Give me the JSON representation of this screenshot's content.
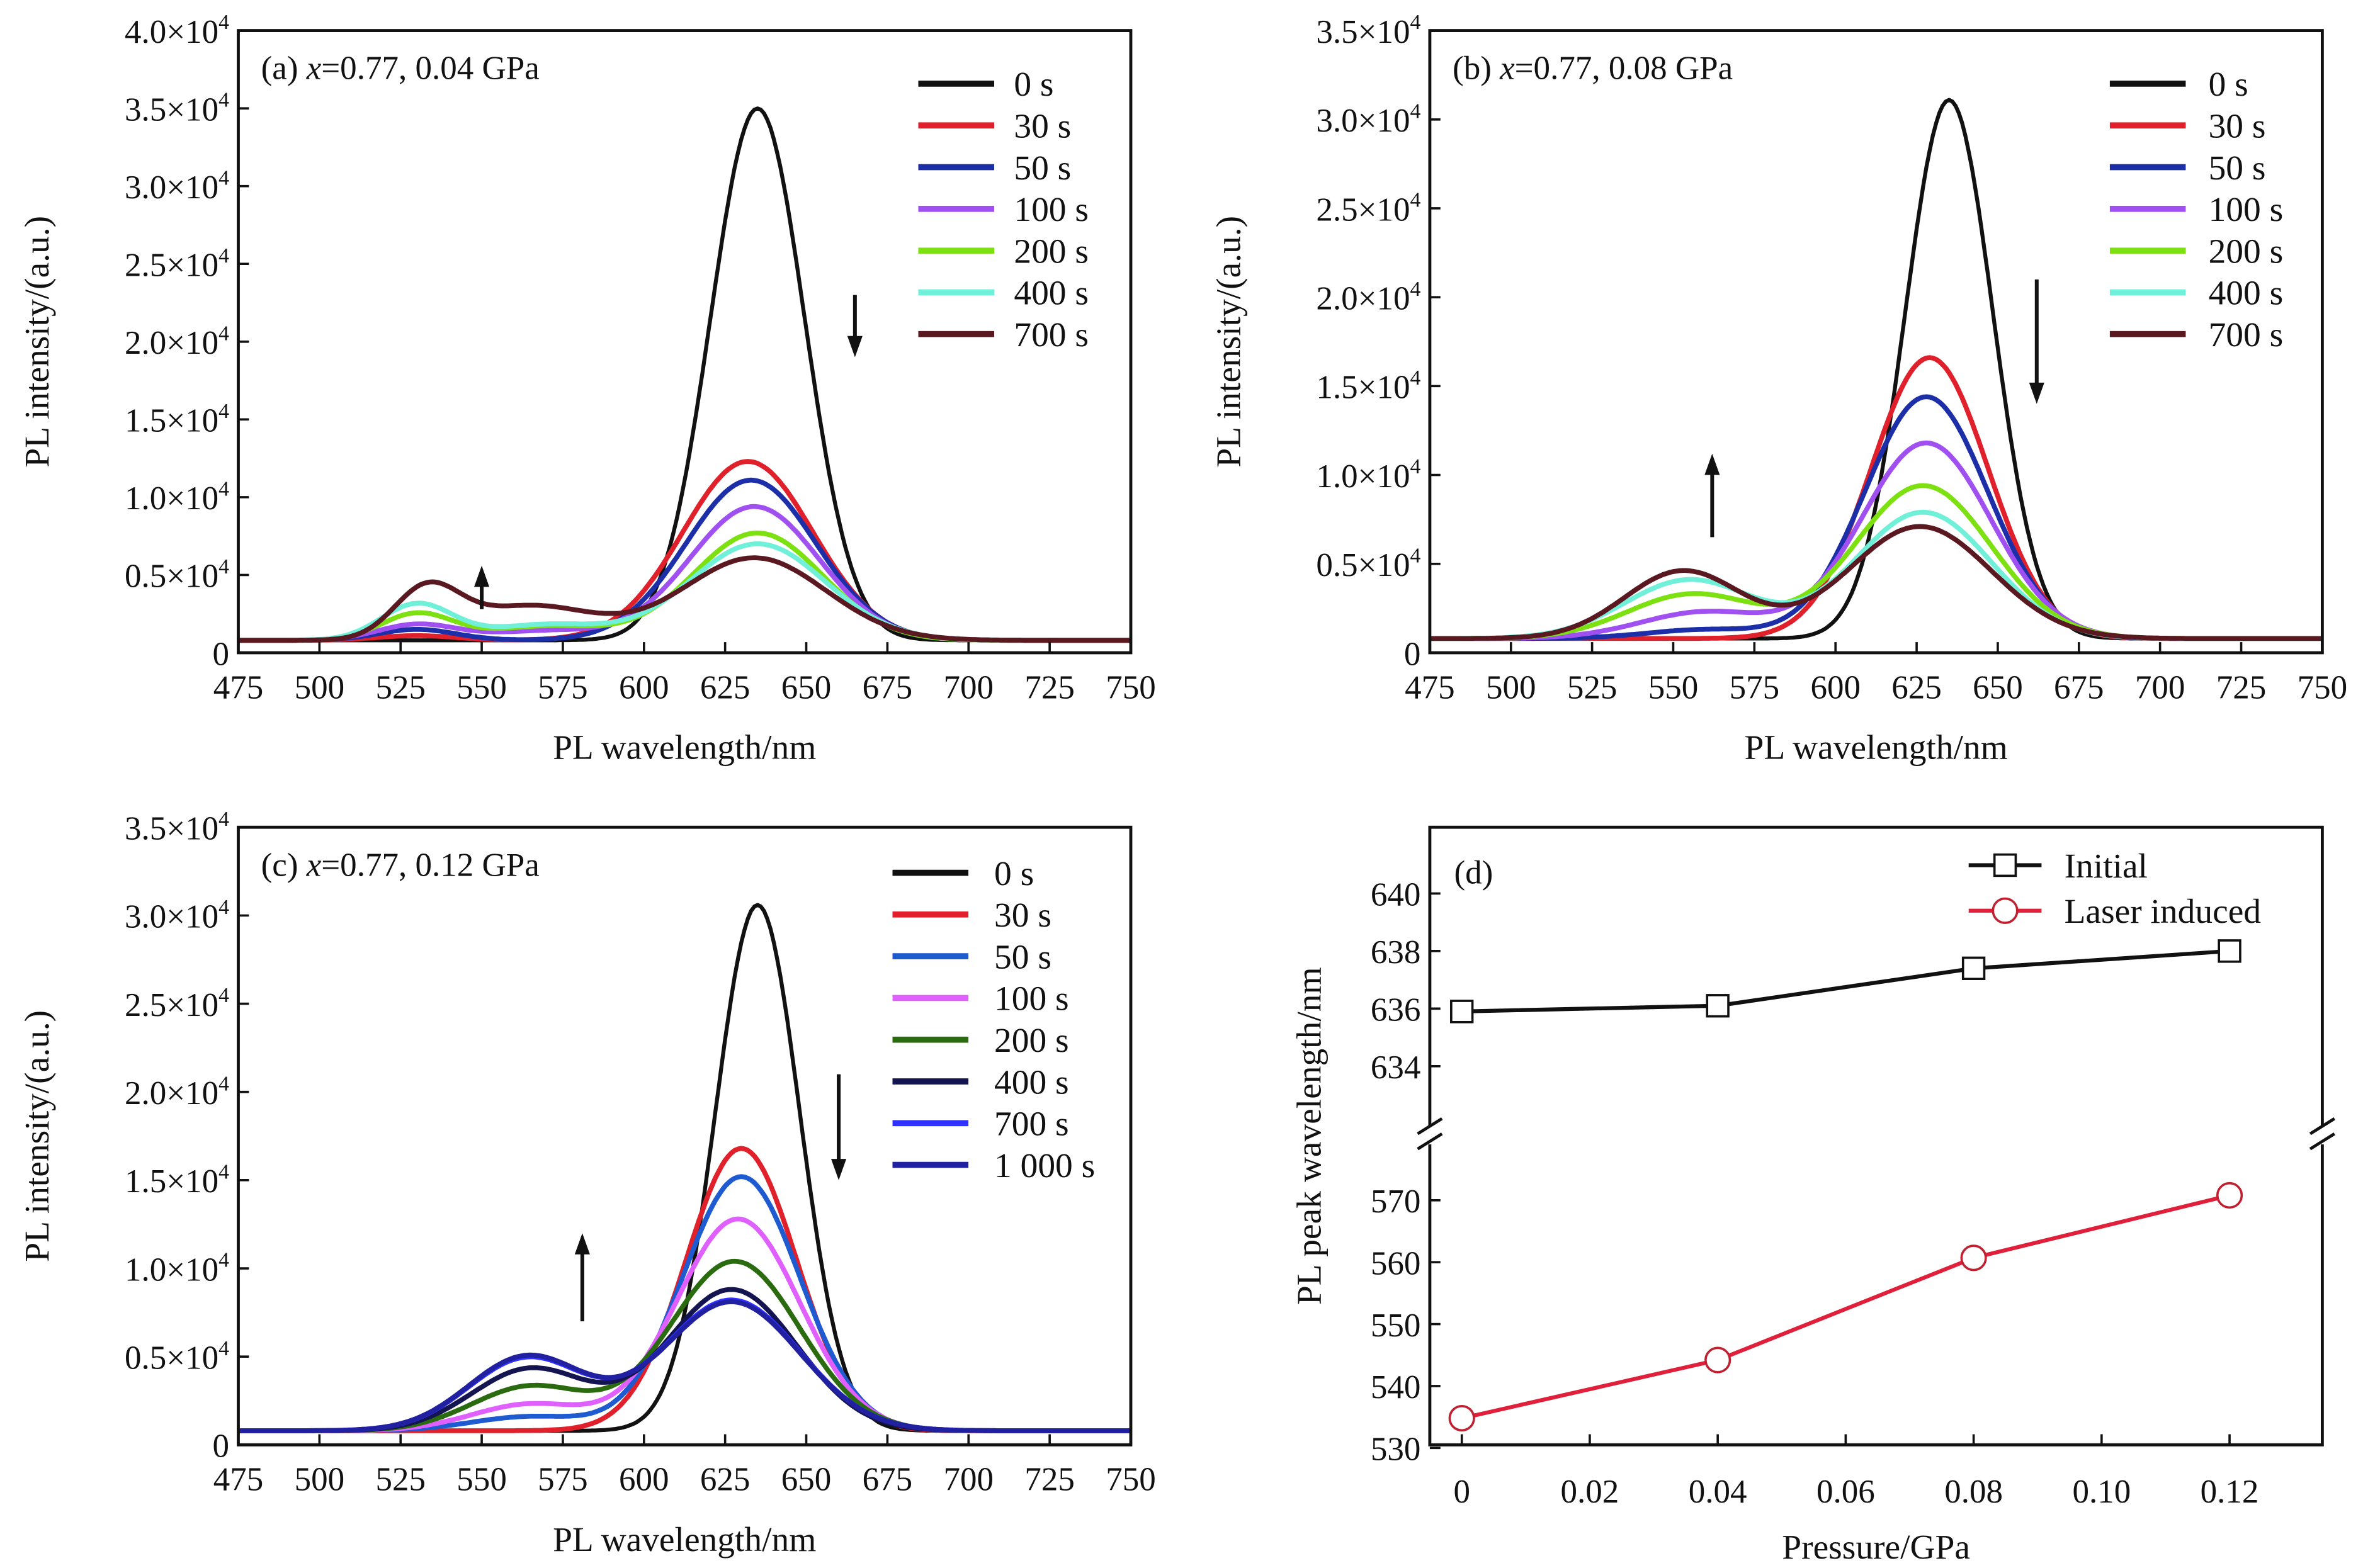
{
  "chart_data": [
    {
      "type": "line",
      "panel": "a",
      "title_prefix": "(a) ",
      "title_var": "x",
      "title_rest": "=0.77, 0.04 GPa",
      "xlabel": "PL wavelength/nm",
      "ylabel": "PL intensity/(a.u.)",
      "xlim": [
        475,
        750
      ],
      "ylim": [
        0,
        40000
      ],
      "xticks": [
        "475",
        "500",
        "525",
        "550",
        "575",
        "600",
        "625",
        "650",
        "675",
        "700",
        "725",
        "750"
      ],
      "yticks": [
        {
          "v": 0,
          "t": "0"
        },
        {
          "v": 5000,
          "t": "0.5×10^4"
        },
        {
          "v": 10000,
          "t": "1.0×10^4"
        },
        {
          "v": 15000,
          "t": "1.5×10^4"
        },
        {
          "v": 20000,
          "t": "2.0×10^4"
        },
        {
          "v": 25000,
          "t": "2.5×10^4"
        },
        {
          "v": 30000,
          "t": "3.0×10^4"
        },
        {
          "v": 35000,
          "t": "3.5×10^4"
        },
        {
          "v": 40000,
          "t": "4.0×10^4"
        }
      ],
      "legend_position": "top-right",
      "arrows": [
        {
          "direction": "up",
          "x": 550,
          "y_from": 2800,
          "y_to": 5600
        },
        {
          "direction": "down",
          "x": 665,
          "y_from": 23000,
          "y_to": 19000
        }
      ],
      "baseline": 800,
      "series": [
        {
          "name": "0 s",
          "color": "#111111",
          "peaks": [
            {
              "center": 635,
              "amplitude": 34200,
              "sigma": 14.5
            }
          ]
        },
        {
          "name": "30 s",
          "color": "#e0202a",
          "peaks": [
            {
              "center": 632,
              "amplitude": 11500,
              "sigma": 20
            },
            {
              "center": 530,
              "amplitude": 300,
              "sigma": 12
            }
          ]
        },
        {
          "name": "50 s",
          "color": "#1c2fa8",
          "peaks": [
            {
              "center": 633,
              "amplitude": 10300,
              "sigma": 20
            },
            {
              "center": 530,
              "amplitude": 700,
              "sigma": 12
            }
          ]
        },
        {
          "name": "100 s",
          "color": "#a050f0",
          "peaks": [
            {
              "center": 634,
              "amplitude": 8600,
              "sigma": 20
            },
            {
              "center": 530,
              "amplitude": 1000,
              "sigma": 12
            },
            {
              "center": 570,
              "amplitude": 600,
              "sigma": 18
            }
          ]
        },
        {
          "name": "200 s",
          "color": "#7de010",
          "peaks": [
            {
              "center": 635,
              "amplitude": 6900,
              "sigma": 20
            },
            {
              "center": 530,
              "amplitude": 1700,
              "sigma": 11
            },
            {
              "center": 570,
              "amplitude": 900,
              "sigma": 18
            }
          ]
        },
        {
          "name": "400 s",
          "color": "#70f0d8",
          "peaks": [
            {
              "center": 635,
              "amplitude": 6200,
              "sigma": 21
            },
            {
              "center": 530,
              "amplitude": 2300,
              "sigma": 11
            },
            {
              "center": 570,
              "amplitude": 1000,
              "sigma": 18
            }
          ]
        },
        {
          "name": "700 s",
          "color": "#5a1820",
          "peaks": [
            {
              "center": 634,
              "amplitude": 5300,
              "sigma": 22
            },
            {
              "center": 533,
              "amplitude": 3100,
              "sigma": 10
            },
            {
              "center": 565,
              "amplitude": 2200,
              "sigma": 20
            }
          ]
        }
      ]
    },
    {
      "type": "line",
      "panel": "b",
      "title_prefix": "(b) ",
      "title_var": "x",
      "title_rest": "=0.77, 0.08 GPa",
      "xlabel": "PL wavelength/nm",
      "ylabel": "PL intensity/(a.u.)",
      "xlim": [
        475,
        750
      ],
      "ylim": [
        0,
        35000
      ],
      "xticks": [
        "475",
        "500",
        "525",
        "550",
        "575",
        "600",
        "625",
        "650",
        "675",
        "700",
        "725",
        "750"
      ],
      "yticks": [
        {
          "v": 0,
          "t": "0"
        },
        {
          "v": 5000,
          "t": "0.5×10^4"
        },
        {
          "v": 10000,
          "t": "1.0×10^4"
        },
        {
          "v": 15000,
          "t": "1.5×10^4"
        },
        {
          "v": 20000,
          "t": "2.0×10^4"
        },
        {
          "v": 25000,
          "t": "2.5×10^4"
        },
        {
          "v": 30000,
          "t": "3.0×10^4"
        },
        {
          "v": 35000,
          "t": "3.5×10^4"
        }
      ],
      "legend_position": "top-right",
      "arrows": [
        {
          "direction": "up",
          "x": 562,
          "y_from": 6500,
          "y_to": 11200
        },
        {
          "direction": "down",
          "x": 662,
          "y_from": 21000,
          "y_to": 14000
        }
      ],
      "baseline": 800,
      "series": [
        {
          "name": "0 s",
          "color": "#111111",
          "peaks": [
            {
              "center": 635,
              "amplitude": 30300,
              "sigma": 13.5
            }
          ]
        },
        {
          "name": "30 s",
          "color": "#e0202a",
          "peaks": [
            {
              "center": 629,
              "amplitude": 15800,
              "sigma": 18
            }
          ]
        },
        {
          "name": "50 s",
          "color": "#1c2fa8",
          "peaks": [
            {
              "center": 628,
              "amplitude": 13600,
              "sigma": 19
            },
            {
              "center": 560,
              "amplitude": 500,
              "sigma": 18
            }
          ]
        },
        {
          "name": "100 s",
          "color": "#a050f0",
          "peaks": [
            {
              "center": 628,
              "amplitude": 11000,
              "sigma": 20
            },
            {
              "center": 560,
              "amplitude": 1500,
              "sigma": 20
            }
          ]
        },
        {
          "name": "200 s",
          "color": "#7de010",
          "peaks": [
            {
              "center": 627,
              "amplitude": 8600,
              "sigma": 21
            },
            {
              "center": 556,
              "amplitude": 2500,
              "sigma": 20
            }
          ]
        },
        {
          "name": "400 s",
          "color": "#70f0d8",
          "peaks": [
            {
              "center": 627,
              "amplitude": 7100,
              "sigma": 21
            },
            {
              "center": 555,
              "amplitude": 3300,
              "sigma": 20
            }
          ]
        },
        {
          "name": "700 s",
          "color": "#5a1820",
          "peaks": [
            {
              "center": 626,
              "amplitude": 6300,
              "sigma": 22
            },
            {
              "center": 553,
              "amplitude": 3800,
              "sigma": 18
            }
          ]
        }
      ]
    },
    {
      "type": "line",
      "panel": "c",
      "title_prefix": "(c) ",
      "title_var": "x",
      "title_rest": "=0.77, 0.12 GPa",
      "xlabel": "PL wavelength/nm",
      "ylabel": "PL intensity/(a.u.)",
      "xlim": [
        475,
        750
      ],
      "ylim": [
        0,
        35000
      ],
      "xticks": [
        "475",
        "500",
        "525",
        "550",
        "575",
        "600",
        "625",
        "650",
        "675",
        "700",
        "725",
        "750"
      ],
      "yticks": [
        {
          "v": 0,
          "t": "0"
        },
        {
          "v": 5000,
          "t": "0.5×10^4"
        },
        {
          "v": 10000,
          "t": "1.0×10^4"
        },
        {
          "v": 15000,
          "t": "1.5×10^4"
        },
        {
          "v": 20000,
          "t": "2.0×10^4"
        },
        {
          "v": 25000,
          "t": "2.5×10^4"
        },
        {
          "v": 30000,
          "t": "3.0×10^4"
        },
        {
          "v": 35000,
          "t": "3.5×10^4"
        }
      ],
      "legend_position": "top-right",
      "arrows": [
        {
          "direction": "up",
          "x": 581,
          "y_from": 7000,
          "y_to": 12000
        },
        {
          "direction": "down",
          "x": 660,
          "y_from": 21000,
          "y_to": 15000
        }
      ],
      "baseline": 800,
      "series": [
        {
          "name": "0 s",
          "color": "#111111",
          "peaks": [
            {
              "center": 635,
              "amplitude": 29800,
              "sigma": 13
            }
          ]
        },
        {
          "name": "30 s",
          "color": "#e0202a",
          "peaks": [
            {
              "center": 630,
              "amplitude": 16000,
              "sigma": 17
            }
          ]
        },
        {
          "name": "50 s",
          "color": "#1e5ad0",
          "peaks": [
            {
              "center": 630,
              "amplitude": 14400,
              "sigma": 18
            },
            {
              "center": 565,
              "amplitude": 800,
              "sigma": 18
            }
          ]
        },
        {
          "name": "100 s",
          "color": "#e060ff",
          "peaks": [
            {
              "center": 629,
              "amplitude": 12000,
              "sigma": 19
            },
            {
              "center": 565,
              "amplitude": 1500,
              "sigma": 18
            }
          ]
        },
        {
          "name": "200 s",
          "color": "#2a6b10",
          "peaks": [
            {
              "center": 628,
              "amplitude": 9600,
              "sigma": 20
            },
            {
              "center": 565,
              "amplitude": 2500,
              "sigma": 18
            }
          ]
        },
        {
          "name": "400 s",
          "color": "#141450",
          "peaks": [
            {
              "center": 627,
              "amplitude": 8000,
              "sigma": 20
            },
            {
              "center": 565,
              "amplitude": 3500,
              "sigma": 18
            }
          ]
        },
        {
          "name": "700 s",
          "color": "#3030ff",
          "peaks": [
            {
              "center": 627,
              "amplitude": 7400,
              "sigma": 21
            },
            {
              "center": 564,
              "amplitude": 4100,
              "sigma": 18
            }
          ]
        },
        {
          "name": "1 000 s",
          "color": "#2020a0",
          "peaks": [
            {
              "center": 627,
              "amplitude": 7300,
              "sigma": 21
            },
            {
              "center": 564,
              "amplitude": 4200,
              "sigma": 18
            }
          ]
        }
      ]
    },
    {
      "type": "line",
      "panel": "d",
      "title": "(d)",
      "xlabel": "Pressure/GPa",
      "ylabel": "PL peak wavelength/nm",
      "xlim": [
        -0.005,
        0.1345
      ],
      "ylim_top": [
        631.6,
        642.3
      ],
      "ylim_bottom": [
        530.5,
        580.5
      ],
      "axis_break": true,
      "xticks": [
        {
          "v": 0,
          "t": "0"
        },
        {
          "v": 0.02,
          "t": "0.02"
        },
        {
          "v": 0.04,
          "t": "0.04"
        },
        {
          "v": 0.06,
          "t": "0.06"
        },
        {
          "v": 0.08,
          "t": "0.08"
        },
        {
          "v": 0.1,
          "t": "0.10"
        },
        {
          "v": 0.12,
          "t": "0.12"
        }
      ],
      "yticks_top": [
        "634",
        "636",
        "638",
        "640"
      ],
      "yticks_bottom": [
        "530",
        "540",
        "550",
        "560",
        "570"
      ],
      "legend_position": "top-right",
      "series": [
        {
          "name": "Initial",
          "color": "#111111",
          "marker": "square",
          "x": [
            0,
            0.04,
            0.08,
            0.12
          ],
          "y": [
            635.9,
            636.1,
            637.4,
            638.0
          ]
        },
        {
          "name": "Laser induced",
          "color": "#e0203a",
          "marker": "circle",
          "x": [
            0,
            0.04,
            0.08,
            0.12
          ],
          "y": [
            534.8,
            544.2,
            560.7,
            570.8
          ]
        }
      ]
    }
  ]
}
